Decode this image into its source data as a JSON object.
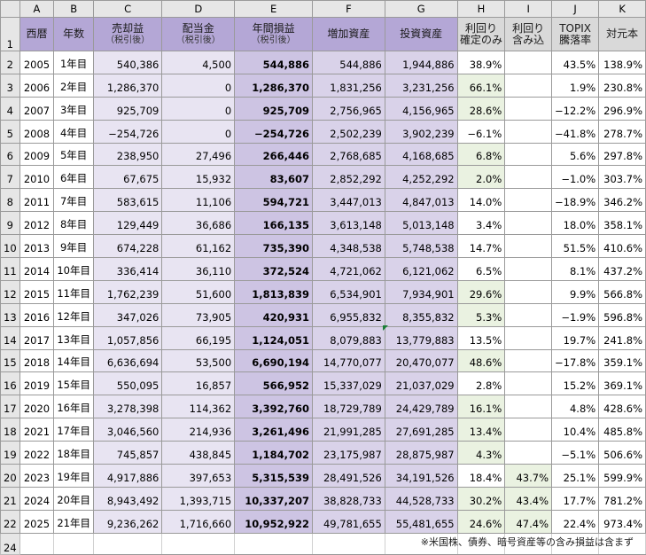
{
  "sheet": {
    "columns": [
      "A",
      "B",
      "C",
      "D",
      "E",
      "F",
      "G",
      "H",
      "I",
      "J",
      "K"
    ],
    "header_row": "1",
    "headers": {
      "a": "西暦",
      "b": "年数",
      "c": "売却益",
      "c_sub": "（税引後）",
      "d": "配当金",
      "d_sub": "（税引後）",
      "e": "年間損益",
      "e_sub": "（税引後）",
      "f": "増加資産",
      "g": "投資資産",
      "h1": "利回り",
      "h2": "確定のみ",
      "i1": "利回り",
      "i2": "含み込",
      "j1": "TOPIX",
      "j2": "騰落率",
      "k": "対元本"
    },
    "rows": [
      {
        "row": "2",
        "year": "2005",
        "count": "1年目",
        "c": "540,386",
        "d": "4,500",
        "e": "544,886",
        "f": "544,886",
        "g": "1,944,886",
        "h": "38.9%",
        "i": "",
        "j": "43.5%",
        "k": "138.9%"
      },
      {
        "row": "3",
        "year": "2006",
        "count": "2年目",
        "c": "1,286,370",
        "d": "0",
        "e": "1,286,370",
        "f": "1,831,256",
        "g": "3,231,256",
        "h": "66.1%",
        "i": "",
        "j": "1.9%",
        "k": "230.8%"
      },
      {
        "row": "4",
        "year": "2007",
        "count": "3年目",
        "c": "925,709",
        "d": "0",
        "e": "925,709",
        "f": "2,756,965",
        "g": "4,156,965",
        "h": "28.6%",
        "i": "",
        "j": "−12.2%",
        "k": "296.9%"
      },
      {
        "row": "5",
        "year": "2008",
        "count": "4年目",
        "c": "−254,726",
        "d": "0",
        "e": "−254,726",
        "f": "2,502,239",
        "g": "3,902,239",
        "h": "−6.1%",
        "i": "",
        "j": "−41.8%",
        "k": "278.7%"
      },
      {
        "row": "6",
        "year": "2009",
        "count": "5年目",
        "c": "238,950",
        "d": "27,496",
        "e": "266,446",
        "f": "2,768,685",
        "g": "4,168,685",
        "h": "6.8%",
        "i": "",
        "j": "5.6%",
        "k": "297.8%"
      },
      {
        "row": "7",
        "year": "2010",
        "count": "6年目",
        "c": "67,675",
        "d": "15,932",
        "e": "83,607",
        "f": "2,852,292",
        "g": "4,252,292",
        "h": "2.0%",
        "i": "",
        "j": "−1.0%",
        "k": "303.7%"
      },
      {
        "row": "8",
        "year": "2011",
        "count": "7年目",
        "c": "583,615",
        "d": "11,106",
        "e": "594,721",
        "f": "3,447,013",
        "g": "4,847,013",
        "h": "14.0%",
        "i": "",
        "j": "−18.9%",
        "k": "346.2%"
      },
      {
        "row": "9",
        "year": "2012",
        "count": "8年目",
        "c": "129,449",
        "d": "36,686",
        "e": "166,135",
        "f": "3,613,148",
        "g": "5,013,148",
        "h": "3.4%",
        "i": "",
        "j": "18.0%",
        "k": "358.1%"
      },
      {
        "row": "10",
        "year": "2013",
        "count": "9年目",
        "c": "674,228",
        "d": "61,162",
        "e": "735,390",
        "f": "4,348,538",
        "g": "5,748,538",
        "h": "14.7%",
        "i": "",
        "j": "51.5%",
        "k": "410.6%"
      },
      {
        "row": "11",
        "year": "2014",
        "count": "10年目",
        "c": "336,414",
        "d": "36,110",
        "e": "372,524",
        "f": "4,721,062",
        "g": "6,121,062",
        "h": "6.5%",
        "i": "",
        "j": "8.1%",
        "k": "437.2%"
      },
      {
        "row": "12",
        "year": "2015",
        "count": "11年目",
        "c": "1,762,239",
        "d": "51,600",
        "e": "1,813,839",
        "f": "6,534,901",
        "g": "7,934,901",
        "h": "29.6%",
        "i": "",
        "j": "9.9%",
        "k": "566.8%"
      },
      {
        "row": "13",
        "year": "2016",
        "count": "12年目",
        "c": "347,026",
        "d": "73,905",
        "e": "420,931",
        "f": "6,955,832",
        "g": "8,355,832",
        "h": "5.3%",
        "i": "",
        "j": "−1.9%",
        "k": "596.8%"
      },
      {
        "row": "14",
        "year": "2017",
        "count": "13年目",
        "c": "1,057,856",
        "d": "66,195",
        "e": "1,124,051",
        "f": "8,079,883",
        "g": "13,779,883",
        "h": "13.5%",
        "i": "",
        "j": "19.7%",
        "k": "241.8%"
      },
      {
        "row": "15",
        "year": "2018",
        "count": "14年目",
        "c": "6,636,694",
        "d": "53,500",
        "e": "6,690,194",
        "f": "14,770,077",
        "g": "20,470,077",
        "h": "48.6%",
        "i": "",
        "j": "−17.8%",
        "k": "359.1%"
      },
      {
        "row": "16",
        "year": "2019",
        "count": "15年目",
        "c": "550,095",
        "d": "16,857",
        "e": "566,952",
        "f": "15,337,029",
        "g": "21,037,029",
        "h": "2.8%",
        "i": "",
        "j": "15.2%",
        "k": "369.1%"
      },
      {
        "row": "17",
        "year": "2020",
        "count": "16年目",
        "c": "3,278,398",
        "d": "114,362",
        "e": "3,392,760",
        "f": "18,729,789",
        "g": "24,429,789",
        "h": "16.1%",
        "i": "",
        "j": "4.8%",
        "k": "428.6%"
      },
      {
        "row": "18",
        "year": "2021",
        "count": "17年目",
        "c": "3,046,560",
        "d": "214,936",
        "e": "3,261,496",
        "f": "21,991,285",
        "g": "27,691,285",
        "h": "13.4%",
        "i": "",
        "j": "10.4%",
        "k": "485.8%"
      },
      {
        "row": "19",
        "year": "2022",
        "count": "18年目",
        "c": "745,857",
        "d": "438,845",
        "e": "1,184,702",
        "f": "23,175,987",
        "g": "28,875,987",
        "h": "4.3%",
        "i": "",
        "j": "−5.1%",
        "k": "506.6%"
      },
      {
        "row": "20",
        "year": "2023",
        "count": "19年目",
        "c": "4,917,886",
        "d": "397,653",
        "e": "5,315,539",
        "f": "28,491,526",
        "g": "34,191,526",
        "h": "18.4%",
        "i": "43.7%",
        "j": "25.1%",
        "k": "599.9%"
      },
      {
        "row": "21",
        "year": "2024",
        "count": "20年目",
        "c": "8,943,492",
        "d": "1,393,715",
        "e": "10,337,207",
        "f": "38,828,733",
        "g": "44,528,733",
        "h": "30.2%",
        "i": "43.4%",
        "j": "17.7%",
        "k": "781.2%"
      },
      {
        "row": "22",
        "year": "2025",
        "count": "21年目",
        "c": "9,236,262",
        "d": "1,716,660",
        "e": "10,952,922",
        "f": "49,781,655",
        "g": "55,481,655",
        "h": "24.6%",
        "i": "47.4%",
        "j": "22.4%",
        "k": "973.4%"
      }
    ],
    "last_row": "24",
    "note": "※米国株、債券、暗号資産等の含み損益は含まず"
  },
  "colors": {
    "header_purple": "#b4a7d6",
    "light_lavender": "#e8e4f2",
    "mid_lavender": "#cdc4e3",
    "green_highlight": "#eaf2e1",
    "negative_red": "#ff0000"
  }
}
